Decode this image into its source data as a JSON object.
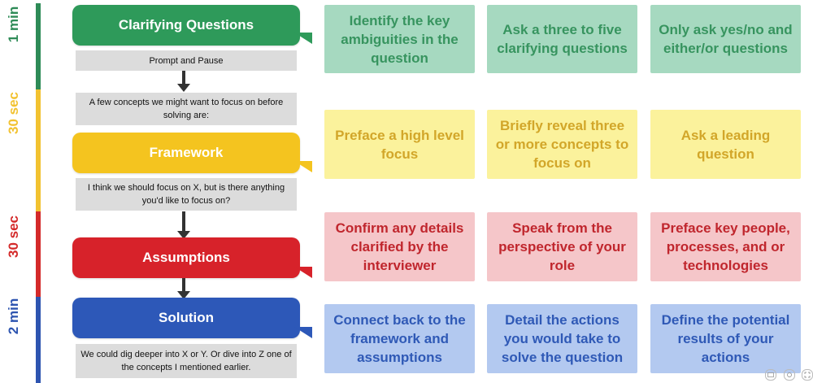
{
  "timeline": {
    "labels": [
      "1 min",
      "30 sec",
      "30 sec",
      "2 min"
    ],
    "colors": [
      "#2e8b57",
      "#f2c230",
      "#d42a2a",
      "#2d54b0"
    ]
  },
  "stages": [
    {
      "label": "Clarifying Questions",
      "color": "#2e9a5a"
    },
    {
      "label": "Framework",
      "color": "#f4c41f"
    },
    {
      "label": "Assumptions",
      "color": "#d7222a"
    },
    {
      "label": "Solution",
      "color": "#2d58b8"
    }
  ],
  "notes": [
    "Prompt and Pause",
    "A few concepts we might want to focus on before solving are:",
    "I think we should focus on X, but is there anything you'd like to focus on?",
    "We could dig deeper into X or Y. Or dive into Z one of the concepts I mentioned earlier."
  ],
  "rows": [
    [
      "Identify the key ambiguities in the question",
      "Ask a three to five clarifying questions",
      "Only ask yes/no and either/or questions"
    ],
    [
      "Preface a high level focus",
      "Briefly reveal three or more concepts to focus on",
      "Ask a leading question"
    ],
    [
      "Confirm any details clarified by the interviewer",
      "Speak from the perspective of your role",
      "Preface key people, processes, and or technologies"
    ],
    [
      "Connect back to the framework and assumptions",
      "Detail the actions you would take to solve the question",
      "Define the potential results of your actions"
    ]
  ],
  "controls": [
    "cc-icon",
    "settings-icon",
    "fullscreen-icon"
  ]
}
